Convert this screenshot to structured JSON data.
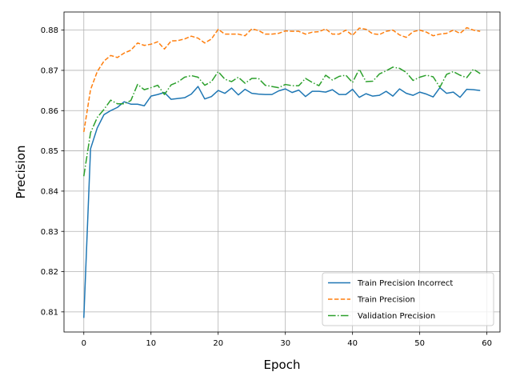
{
  "chart_data": {
    "type": "line",
    "xlabel": "Epoch",
    "ylabel": "Precision",
    "xlim": [
      -2.95,
      61.95
    ],
    "ylim": [
      0.805,
      0.8845
    ],
    "xticks": [
      0,
      10,
      20,
      30,
      40,
      50,
      60
    ],
    "yticks": [
      0.81,
      0.82,
      0.83,
      0.84,
      0.85,
      0.86,
      0.87,
      0.88
    ],
    "xtick_labels": [
      "0",
      "10",
      "20",
      "30",
      "40",
      "50",
      "60"
    ],
    "ytick_labels": [
      "0.81",
      "0.82",
      "0.83",
      "0.84",
      "0.85",
      "0.86",
      "0.87",
      "0.88"
    ],
    "grid": true,
    "legend_position": "lower-right",
    "x": [
      0,
      1,
      2,
      3,
      4,
      5,
      6,
      7,
      8,
      9,
      10,
      11,
      12,
      13,
      14,
      15,
      16,
      17,
      18,
      19,
      20,
      21,
      22,
      23,
      24,
      25,
      26,
      27,
      28,
      29,
      30,
      31,
      32,
      33,
      34,
      35,
      36,
      37,
      38,
      39,
      40,
      41,
      42,
      43,
      44,
      45,
      46,
      47,
      48,
      49,
      50,
      51,
      52,
      53,
      54,
      55,
      56,
      57,
      58,
      59
    ],
    "series": [
      {
        "name": "Train Precision Incorrect",
        "color": "#1f77b4",
        "dash": "solid",
        "values": [
          0.8085,
          0.8505,
          0.8557,
          0.859,
          0.86,
          0.8608,
          0.8622,
          0.8616,
          0.8616,
          0.8612,
          0.8636,
          0.864,
          0.8645,
          0.8628,
          0.863,
          0.8632,
          0.8641,
          0.866,
          0.8629,
          0.8635,
          0.865,
          0.8643,
          0.8656,
          0.8639,
          0.8653,
          0.8643,
          0.8641,
          0.864,
          0.864,
          0.8649,
          0.8654,
          0.8645,
          0.8651,
          0.8635,
          0.8648,
          0.8648,
          0.8646,
          0.8652,
          0.864,
          0.864,
          0.8653,
          0.8633,
          0.8642,
          0.8636,
          0.8638,
          0.8648,
          0.8636,
          0.8654,
          0.8643,
          0.8638,
          0.8646,
          0.8641,
          0.8634,
          0.8657,
          0.8643,
          0.8646,
          0.8633,
          0.8653,
          0.8652,
          0.865
        ]
      },
      {
        "name": "Train Precision",
        "color": "#ff7f0e",
        "dash": "dashed",
        "values": [
          0.8547,
          0.8652,
          0.8697,
          0.8723,
          0.8737,
          0.8732,
          0.8743,
          0.875,
          0.8768,
          0.8762,
          0.8765,
          0.8771,
          0.8753,
          0.8773,
          0.8774,
          0.8778,
          0.8785,
          0.878,
          0.8768,
          0.8778,
          0.8802,
          0.879,
          0.879,
          0.879,
          0.8786,
          0.8803,
          0.8799,
          0.879,
          0.879,
          0.8792,
          0.8798,
          0.8797,
          0.8797,
          0.879,
          0.8795,
          0.8796,
          0.8803,
          0.879,
          0.879,
          0.88,
          0.8787,
          0.8805,
          0.8802,
          0.8791,
          0.8789,
          0.8797,
          0.88,
          0.8788,
          0.8782,
          0.8796,
          0.88,
          0.8795,
          0.8786,
          0.879,
          0.8792,
          0.88,
          0.8792,
          0.8806,
          0.88,
          0.8797
        ]
      },
      {
        "name": "Validation Precision",
        "color": "#2ca02c",
        "dash": "dashdot",
        "values": [
          0.8437,
          0.8545,
          0.8583,
          0.8603,
          0.8626,
          0.8617,
          0.8617,
          0.8625,
          0.8665,
          0.8652,
          0.8657,
          0.8663,
          0.864,
          0.8664,
          0.8671,
          0.8683,
          0.8687,
          0.8683,
          0.8663,
          0.8672,
          0.8697,
          0.8678,
          0.8672,
          0.8683,
          0.8668,
          0.868,
          0.868,
          0.8663,
          0.866,
          0.8657,
          0.8665,
          0.8662,
          0.8662,
          0.868,
          0.867,
          0.8662,
          0.8688,
          0.8676,
          0.8685,
          0.8688,
          0.867,
          0.8703,
          0.8672,
          0.8673,
          0.8691,
          0.8699,
          0.8708,
          0.8705,
          0.8695,
          0.8675,
          0.8683,
          0.8688,
          0.8684,
          0.8658,
          0.869,
          0.8697,
          0.8688,
          0.8682,
          0.8703,
          0.8692
        ]
      }
    ]
  }
}
